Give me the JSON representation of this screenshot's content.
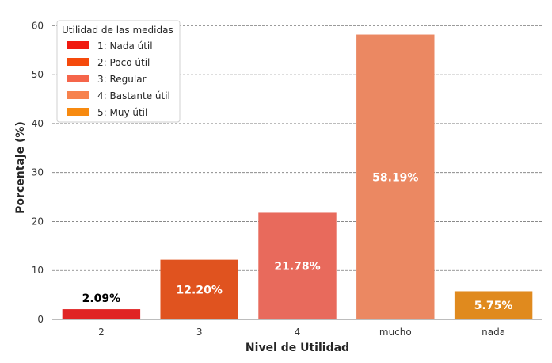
{
  "chart_data": {
    "type": "bar",
    "xlabel": "Nivel de Utilidad",
    "ylabel": "Porcentaje (%)",
    "ylim": [
      0,
      62
    ],
    "yticks": [
      0,
      10,
      20,
      30,
      40,
      50,
      60
    ],
    "grid": "horizontal dashed",
    "categories": [
      "2",
      "3",
      "4",
      "mucho",
      "nada"
    ],
    "values": [
      2.09,
      12.2,
      21.78,
      58.19,
      5.75
    ],
    "data_labels": [
      "2.09%",
      "12.20%",
      "21.78%",
      "58.19%",
      "5.75%"
    ],
    "bar_colors": [
      "#e02424",
      "#e0531f",
      "#e86a5c",
      "#eb8862",
      "#e08a1e"
    ],
    "label_colors": [
      "#000000",
      "#ffffff",
      "#ffffff",
      "#ffffff",
      "#ffffff"
    ],
    "legend": {
      "title": "Utilidad de las medidas",
      "placement": "top-left",
      "items": [
        {
          "label": "1: Nada útil",
          "color": "#f01a0f"
        },
        {
          "label": "2: Poco útil",
          "color": "#f54a0c"
        },
        {
          "label": "3: Regular",
          "color": "#f5654a"
        },
        {
          "label": "4: Bastante útil",
          "color": "#f7824d"
        },
        {
          "label": "5: Muy útil",
          "color": "#f78a10"
        }
      ]
    }
  }
}
